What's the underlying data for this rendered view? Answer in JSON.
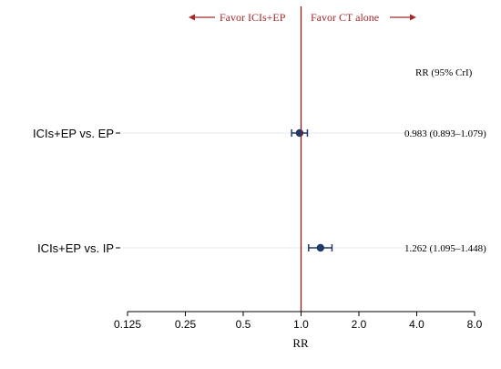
{
  "chart_data": {
    "type": "forest",
    "xlabel": "RR",
    "x_scale": "log2",
    "xlim": [
      0.125,
      8.0
    ],
    "xticks": [
      "0.125",
      "0.25",
      "0.5",
      "1.0",
      "2.0",
      "4.0",
      "8.0"
    ],
    "xtick_values": [
      0.125,
      0.25,
      0.5,
      1.0,
      2.0,
      4.0,
      8.0
    ],
    "reference_line": 1.0,
    "favor_left": "Favor ICIs+EP",
    "favor_right": "Favor CT alone",
    "ci_header": "RR (95% CrI)",
    "rows": [
      {
        "label": "ICIs+EP vs. EP",
        "estimate": 0.983,
        "lower": 0.893,
        "upper": 1.079,
        "ci_text": "0.983 (0.893–1.079)"
      },
      {
        "label": "ICIs+EP vs. IP",
        "estimate": 1.262,
        "lower": 1.095,
        "upper": 1.448,
        "ci_text": "1.262 (1.095–1.448)"
      }
    ],
    "colors": {
      "point": "#1f3a68",
      "reference_line": "#8b1a1a",
      "favor_text": "#a52a2a",
      "gridline": "#e6eaf0"
    }
  }
}
